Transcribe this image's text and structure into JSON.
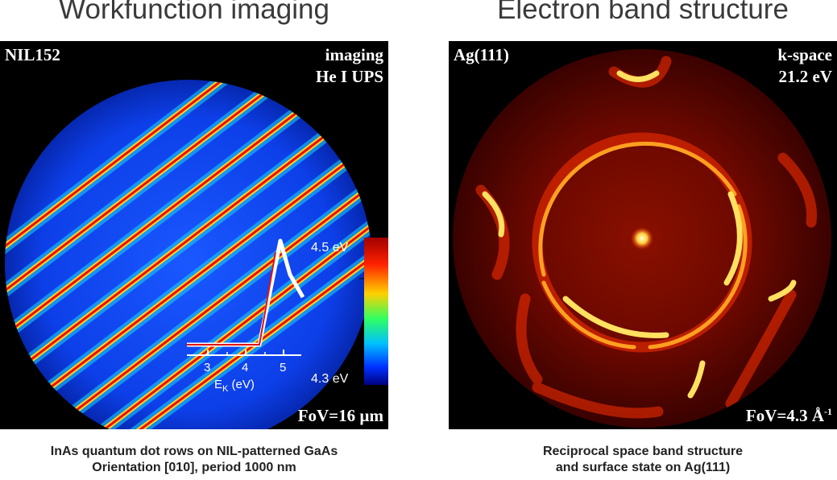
{
  "left": {
    "heading": "Workfunction imaging",
    "sample_label": "NIL152",
    "mode_label": "imaging",
    "source_label": "He I UPS",
    "fov_label": "FoV=16 µm",
    "caption_line1": "InAs quantum dot rows on NIL-patterned GaAs",
    "caption_line2": "Orientation [010], period 1000 nm",
    "colorbar": {
      "top_label": "4.5 eV",
      "bottom_label": "4.3 eV",
      "colors": [
        "#a00000",
        "#ff2000",
        "#ffd000",
        "#30ff60",
        "#00c0ff",
        "#0030ff",
        "#000080"
      ]
    },
    "inset_plot": {
      "x_ticks": [
        "3",
        "4",
        "5"
      ],
      "x_label_main": "E",
      "x_label_sub": "K",
      "x_label_unit": " (eV)"
    }
  },
  "right": {
    "heading": "Electron band structure",
    "sample_label": "Ag(111)",
    "mode_label": "k-space",
    "energy_label": "21.2 eV",
    "fov_label": "FoV=4.3 Å",
    "fov_superscript": "-1",
    "caption_line1": "Reciprocal space band structure",
    "caption_line2": "and surface state on Ag(111)"
  }
}
